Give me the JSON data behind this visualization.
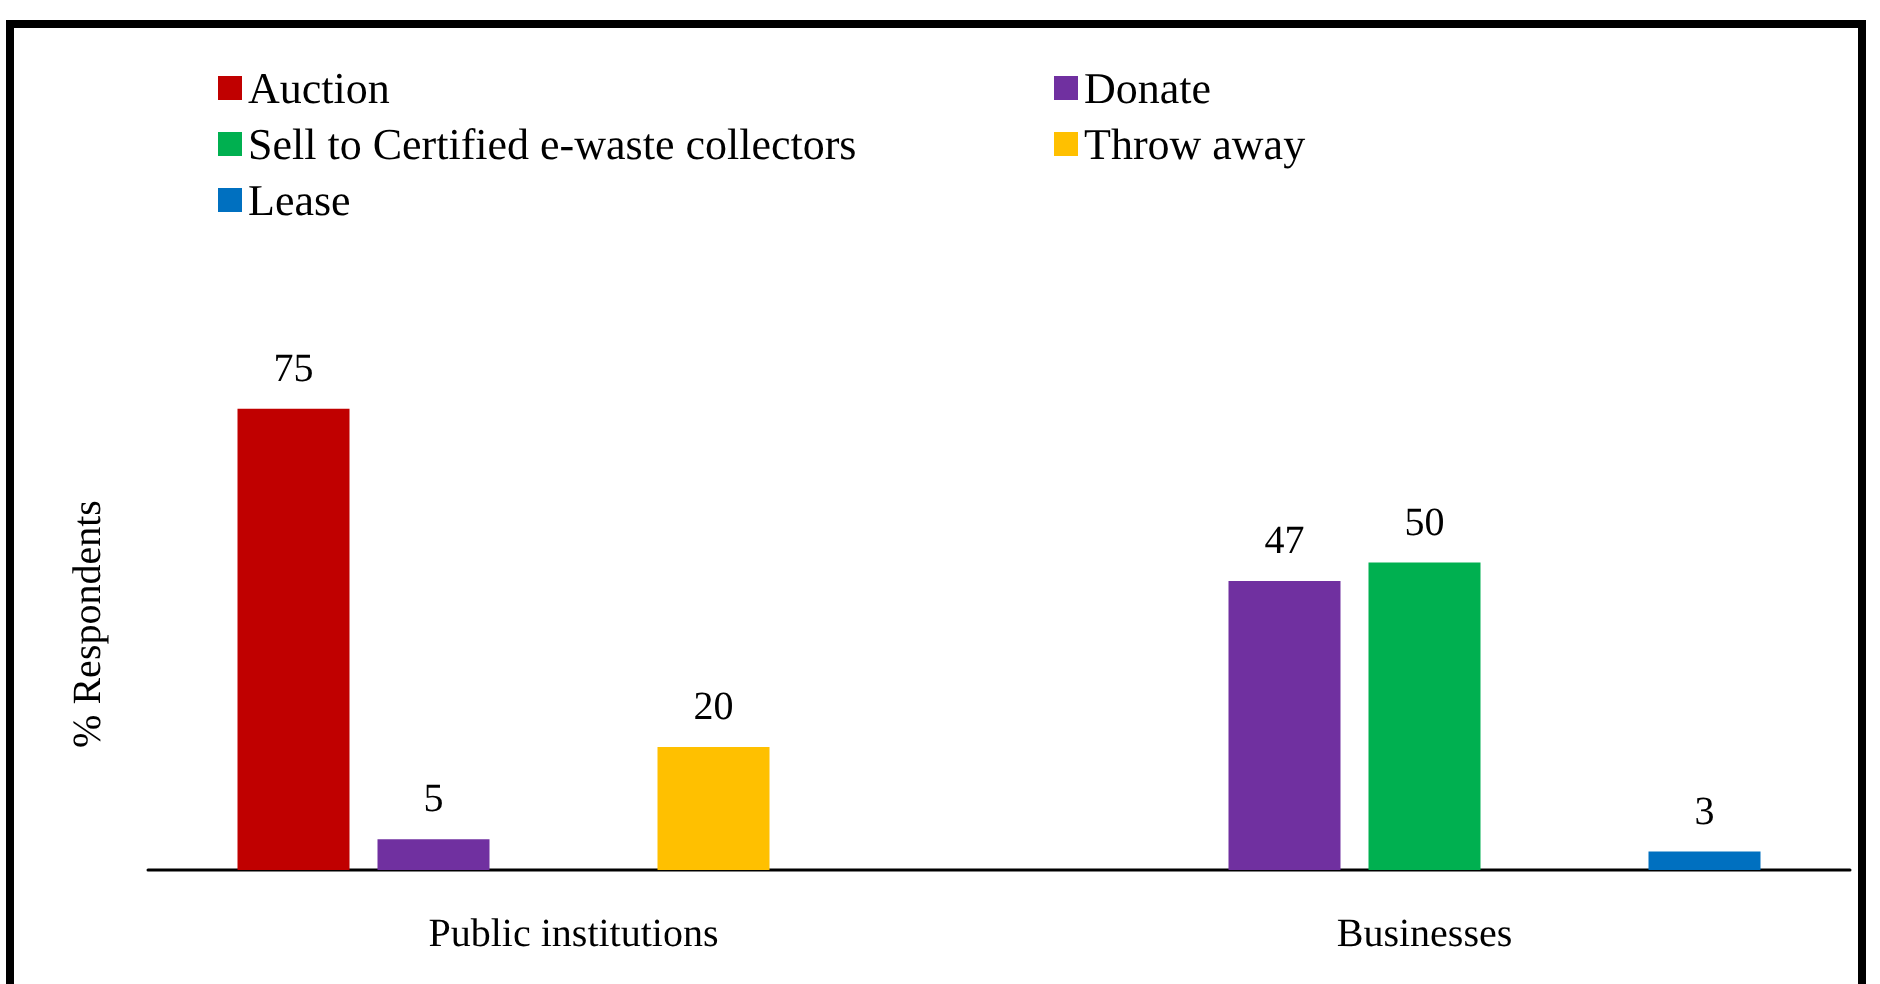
{
  "chart_data": {
    "type": "bar",
    "ylabel": "% Respondents",
    "categories": [
      "Public institutions",
      "Businesses"
    ],
    "series": [
      {
        "name": "Auction",
        "color": "#c00000",
        "values": [
          75,
          null
        ]
      },
      {
        "name": "Donate",
        "color": "#7030a0",
        "values": [
          5,
          47
        ]
      },
      {
        "name": "Sell to Certified e-waste collectors",
        "color": "#00b050",
        "values": [
          null,
          50
        ]
      },
      {
        "name": "Throw away",
        "color": "#ffc000",
        "values": [
          20,
          null
        ]
      },
      {
        "name": "Lease",
        "color": "#0070c0",
        "values": [
          null,
          3
        ]
      }
    ],
    "data_labels": true,
    "legend": "top"
  }
}
